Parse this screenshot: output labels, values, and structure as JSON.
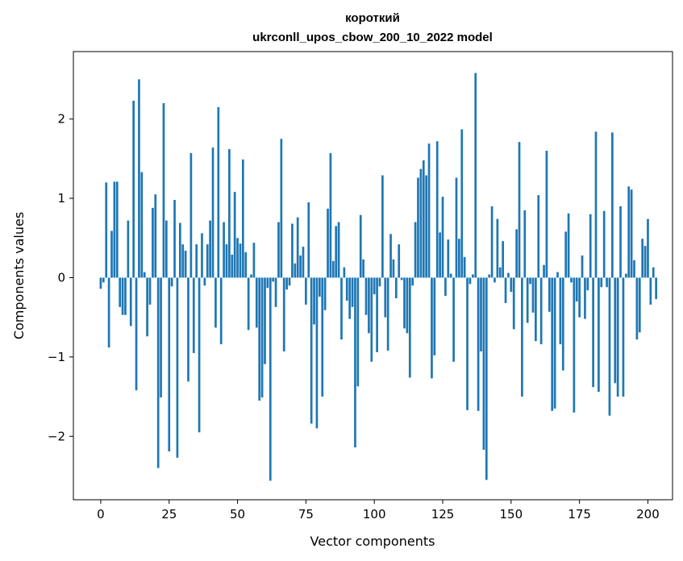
{
  "chart_data": {
    "type": "bar",
    "title_line1": "короткий",
    "title_line2": "ukrconll_upos_cbow_200_10_2022 model",
    "xlabel": "Vector components",
    "ylabel": "Components values",
    "xlim": [
      -10,
      209
    ],
    "ylim": [
      -2.8,
      2.85
    ],
    "xticks": [
      0,
      25,
      50,
      75,
      100,
      125,
      150,
      175,
      200
    ],
    "yticks": [
      -2,
      -1,
      0,
      1,
      2
    ],
    "ytick_labels": [
      "−2",
      "−1",
      "0",
      "1",
      "2"
    ],
    "bar_color": "#1f77b4",
    "grid": false,
    "values": [
      -0.14,
      -0.06,
      1.2,
      -0.88,
      0.59,
      1.21,
      1.21,
      -0.37,
      -0.47,
      -0.47,
      0.72,
      -0.61,
      2.23,
      -1.42,
      2.5,
      1.33,
      0.07,
      -0.74,
      -0.34,
      0.88,
      1.05,
      -2.4,
      -1.51,
      2.2,
      0.72,
      -2.19,
      -0.11,
      0.98,
      -2.27,
      0.69,
      0.42,
      0.34,
      -1.31,
      1.57,
      -0.95,
      0.42,
      -1.95,
      0.56,
      -0.1,
      0.42,
      0.72,
      1.64,
      -0.63,
      2.15,
      -0.84,
      0.7,
      0.42,
      1.62,
      0.29,
      1.08,
      0.5,
      0.43,
      1.49,
      0.32,
      -0.66,
      0.04,
      0.44,
      -0.63,
      -1.55,
      -1.51,
      -1.09,
      -0.13,
      -2.56,
      -0.05,
      -0.37,
      0.7,
      1.75,
      -0.93,
      -0.15,
      -0.1,
      0.68,
      0.18,
      0.76,
      0.28,
      0.39,
      -0.34,
      0.95,
      -1.84,
      -0.59,
      -1.9,
      -0.24,
      -1.5,
      -0.41,
      0.87,
      1.57,
      0.21,
      0.65,
      0.7,
      -0.78,
      0.13,
      -0.29,
      -0.52,
      -0.37,
      -2.14,
      -1.37,
      0.79,
      0.23,
      -0.47,
      -0.7,
      -1.06,
      -0.21,
      -0.94,
      -0.11,
      1.29,
      -0.5,
      -0.92,
      0.55,
      0.23,
      -0.26,
      0.42,
      -0.03,
      -0.64,
      -0.7,
      -1.26,
      -0.1,
      0.7,
      1.26,
      1.37,
      1.48,
      1.29,
      1.69,
      -1.27,
      -0.98,
      1.72,
      0.57,
      1.02,
      -0.23,
      0.48,
      0.05,
      -1.06,
      1.26,
      0.49,
      1.87,
      0.26,
      -1.67,
      -0.08,
      0.04,
      2.58,
      -1.68,
      -0.93,
      -2.17,
      -2.55,
      0.04,
      0.9,
      -0.06,
      0.74,
      0.13,
      0.46,
      -0.32,
      0.06,
      -0.18,
      -0.65,
      0.61,
      1.71,
      -1.5,
      0.85,
      -0.57,
      -0.08,
      -0.44,
      -0.8,
      1.04,
      -0.84,
      0.16,
      1.6,
      -0.43,
      -1.68,
      -1.65,
      0.07,
      -0.84,
      -1.17,
      0.58,
      0.81,
      -0.06,
      -1.7,
      -0.3,
      -0.5,
      0.28,
      -0.52,
      -0.16,
      0.8,
      -1.38,
      1.84,
      -1.44,
      -0.12,
      0.84,
      -0.12,
      -1.74,
      1.83,
      -1.33,
      -1.5,
      0.9,
      -1.5,
      0.05,
      1.15,
      1.11,
      0.22,
      -0.78,
      -0.69,
      0.49,
      0.4,
      0.74,
      -0.34,
      0.13,
      -0.27
    ]
  }
}
